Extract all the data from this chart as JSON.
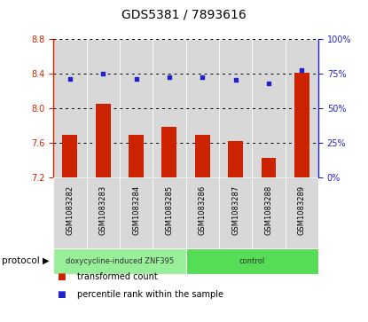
{
  "title": "GDS5381 / 7893616",
  "samples": [
    "GSM1083282",
    "GSM1083283",
    "GSM1083284",
    "GSM1083285",
    "GSM1083286",
    "GSM1083287",
    "GSM1083288",
    "GSM1083289"
  ],
  "bar_values": [
    7.69,
    8.05,
    7.69,
    7.78,
    7.69,
    7.62,
    7.42,
    8.41
  ],
  "dot_values": [
    71,
    75,
    71,
    72,
    72,
    70,
    68,
    77
  ],
  "ylim_left": [
    7.2,
    8.8
  ],
  "ylim_right": [
    0,
    100
  ],
  "yticks_left": [
    7.2,
    7.6,
    8.0,
    8.4,
    8.8
  ],
  "yticks_right": [
    0,
    25,
    50,
    75,
    100
  ],
  "bar_color": "#cc2200",
  "dot_color": "#2222cc",
  "bar_bottom": 7.2,
  "protocol_groups": [
    {
      "label": "doxycycline-induced ZNF395",
      "count": 4,
      "color": "#99ee99"
    },
    {
      "label": "control",
      "count": 4,
      "color": "#55dd55"
    }
  ],
  "legend_items": [
    {
      "color": "#cc2200",
      "label": "transformed count"
    },
    {
      "color": "#2222cc",
      "label": "percentile rank within the sample"
    }
  ],
  "protocol_label": "protocol",
  "bg_color_columns": "#d8d8d8",
  "col_border_color": "#ffffff"
}
